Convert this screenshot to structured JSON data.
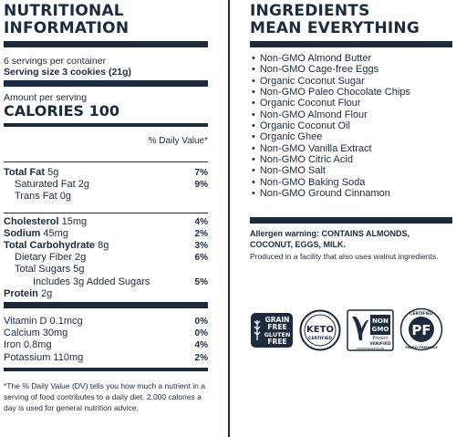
{
  "nutrition": {
    "title_line1": "NUTRITIONAL",
    "title_line2": "INFORMATION",
    "servings_per_container": "6 servings per container",
    "serving_size": "Serving size 3 cookies (21g)",
    "amount_per_serving": "Amount per serving",
    "calories": "CALORIES 100",
    "daily_value_header": "% Daily Value*",
    "total_fat": {
      "label": "Total Fat",
      "amount": "5g",
      "dv": "7%"
    },
    "saturated_fat": {
      "label": "Saturated Fat 2g",
      "dv": "9%"
    },
    "trans_fat": {
      "label": "Trans Fat 0g"
    },
    "cholesterol": {
      "label": "Cholesterol",
      "amount": "15mg",
      "dv": "4%"
    },
    "sodium": {
      "label": "Sodium",
      "amount": "45mg",
      "dv": "2%"
    },
    "total_carbohydrate": {
      "label": "Total Carbohydrate",
      "amount": "8g",
      "dv": "3%"
    },
    "dietary_fiber": {
      "label": "Dietary Fiber 2g",
      "dv": "6%"
    },
    "total_sugars": {
      "label": "Total Sugars 5g"
    },
    "added_sugars": {
      "label": "Includes 3g Added Sugars",
      "dv": "5%"
    },
    "protein": {
      "label": "Protein",
      "amount": "2g"
    },
    "vitamin_d": {
      "label": "Vitamin D 0.1mcg",
      "dv": "0%"
    },
    "calcium": {
      "label": "Calcium 30mg",
      "dv": "0%"
    },
    "iron": {
      "label": "Iron 0.8mg",
      "dv": "4%"
    },
    "potassium": {
      "label": "Potassium 110mg",
      "dv": "2%"
    },
    "footnote": "*The % Daily Value (DV) tells you how much a nutrient in a serving of food contributes to a daily diet. 2,000 calories a day is used for general nutrition advice."
  },
  "ingredients": {
    "title_line1": "INGREDIENTS",
    "title_line2": "MEAN EVERYTHING",
    "items": [
      "Non-GMO Almond Butter",
      "Non-GMO Cage-free Eggs",
      "Organic Coconut Sugar",
      "Non-GMO Paleo Chocolate Chips",
      "Organic Coconut Flour",
      "Non-GMO Almond Flour",
      "Organic Coconut Oil",
      "Organic Ghee",
      "Non-GMO Vanilla Extract",
      "Non-GMO Citric Acid",
      "Non-GMO Salt",
      "Non-GMO Baking Soda",
      "Non-GMO Ground Cinnamon"
    ],
    "allergen_bold": "Allergen warning: CONTAINS ALMONDS, COCONUT, EGGS, MILK.",
    "facility_note": "Produced in a facility that also uses walnut ingredients."
  },
  "badges": {
    "grain_free_1": "GRAIN",
    "grain_free_2": "FREE",
    "grain_free_3": "GLUTEN",
    "grain_free_4": "FREE",
    "keto": "KETO",
    "keto_sub": "CERTIFIED",
    "nongmo_1": "NON",
    "nongmo_2": "GMO",
    "nongmo_3": "Project",
    "nongmo_4": "VERIFIED",
    "nongmo_5": "nongmoproject.org",
    "paleo_top": "CERTIFIED",
    "paleo_mid": "PF",
    "paleo_bottom": "PALEO FRIENDLY"
  },
  "colors": {
    "navy": "#1c2b3e",
    "white": "#ffffff"
  }
}
